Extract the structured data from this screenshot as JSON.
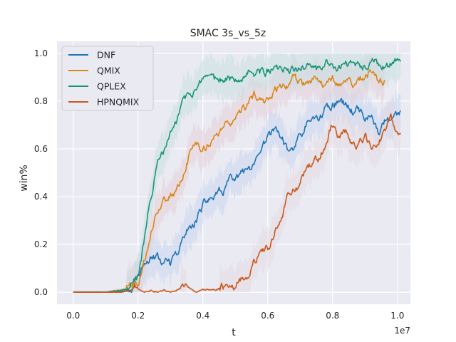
{
  "chart_data": {
    "type": "line",
    "title": "SMAC 3s_vs_5z",
    "xlabel": "t",
    "ylabel": "win%",
    "x_offset_text": "1e7",
    "xlim": [
      -0.05,
      1.04
    ],
    "ylim": [
      -0.05,
      1.05
    ],
    "x_ticks": [
      0.0,
      0.2,
      0.4,
      0.6,
      0.8,
      1.0
    ],
    "x_tick_labels": [
      "0.0",
      "0.2",
      "0.4",
      "0.6",
      "0.8",
      "1.0"
    ],
    "y_ticks": [
      0.0,
      0.2,
      0.4,
      0.6,
      0.8,
      1.0
    ],
    "y_tick_labels": [
      "0.0",
      "0.2",
      "0.4",
      "0.6",
      "0.8",
      "1.0"
    ],
    "grid": true,
    "legend_position": "top-left",
    "series": [
      {
        "name": "DNF",
        "color": "#1f74b4",
        "band_color": "#c9d6ee",
        "x": [
          0.0,
          0.05,
          0.1,
          0.15,
          0.18,
          0.2,
          0.22,
          0.24,
          0.26,
          0.28,
          0.3,
          0.32,
          0.34,
          0.36,
          0.38,
          0.4,
          0.42,
          0.44,
          0.46,
          0.48,
          0.5,
          0.52,
          0.54,
          0.56,
          0.58,
          0.6,
          0.62,
          0.64,
          0.66,
          0.68,
          0.7,
          0.72,
          0.74,
          0.76,
          0.78,
          0.8,
          0.82,
          0.84,
          0.86,
          0.88,
          0.9,
          0.92,
          0.94,
          0.96,
          0.98,
          1.0,
          1.01
        ],
        "y": [
          0.0,
          0.0,
          0.0,
          0.005,
          0.02,
          0.06,
          0.11,
          0.15,
          0.14,
          0.12,
          0.11,
          0.15,
          0.22,
          0.28,
          0.31,
          0.36,
          0.39,
          0.4,
          0.42,
          0.46,
          0.47,
          0.49,
          0.5,
          0.52,
          0.57,
          0.64,
          0.68,
          0.66,
          0.59,
          0.61,
          0.65,
          0.7,
          0.72,
          0.73,
          0.77,
          0.79,
          0.8,
          0.78,
          0.76,
          0.78,
          0.73,
          0.74,
          0.66,
          0.71,
          0.74,
          0.73,
          0.74
        ]
      },
      {
        "name": "QMIX",
        "color": "#d9861a",
        "band_color": "#e5cfd8",
        "x": [
          0.0,
          0.05,
          0.1,
          0.15,
          0.18,
          0.2,
          0.22,
          0.24,
          0.26,
          0.28,
          0.3,
          0.32,
          0.34,
          0.36,
          0.38,
          0.4,
          0.42,
          0.44,
          0.46,
          0.48,
          0.5,
          0.52,
          0.54,
          0.56,
          0.58,
          0.6,
          0.62,
          0.64,
          0.66,
          0.68,
          0.7,
          0.72,
          0.74,
          0.76,
          0.78,
          0.8,
          0.82,
          0.84,
          0.86,
          0.88,
          0.9,
          0.92,
          0.94,
          0.96
        ],
        "y": [
          0.0,
          0.0,
          0.0,
          0.01,
          0.02,
          0.05,
          0.14,
          0.26,
          0.35,
          0.38,
          0.41,
          0.43,
          0.5,
          0.58,
          0.62,
          0.6,
          0.63,
          0.66,
          0.68,
          0.71,
          0.7,
          0.75,
          0.79,
          0.82,
          0.8,
          0.8,
          0.84,
          0.87,
          0.86,
          0.89,
          0.87,
          0.88,
          0.9,
          0.91,
          0.86,
          0.89,
          0.88,
          0.9,
          0.87,
          0.89,
          0.9,
          0.93,
          0.87,
          0.88
        ]
      },
      {
        "name": "QPLEX",
        "color": "#1a9478",
        "band_color": "#c6dfe0",
        "x": [
          0.0,
          0.05,
          0.1,
          0.15,
          0.18,
          0.2,
          0.22,
          0.24,
          0.26,
          0.28,
          0.3,
          0.32,
          0.34,
          0.36,
          0.38,
          0.4,
          0.42,
          0.44,
          0.46,
          0.48,
          0.5,
          0.52,
          0.54,
          0.56,
          0.58,
          0.6,
          0.62,
          0.64,
          0.66,
          0.68,
          0.7,
          0.72,
          0.74,
          0.76,
          0.78,
          0.8,
          0.82,
          0.84,
          0.86,
          0.88,
          0.9,
          0.92,
          0.94,
          0.96,
          0.98,
          1.0,
          1.01
        ],
        "y": [
          0.0,
          0.0,
          0.0,
          0.01,
          0.02,
          0.06,
          0.22,
          0.4,
          0.53,
          0.6,
          0.65,
          0.72,
          0.8,
          0.84,
          0.85,
          0.87,
          0.87,
          0.88,
          0.89,
          0.9,
          0.9,
          0.91,
          0.92,
          0.92,
          0.92,
          0.93,
          0.93,
          0.92,
          0.93,
          0.93,
          0.93,
          0.94,
          0.94,
          0.93,
          0.95,
          0.94,
          0.94,
          0.95,
          0.95,
          0.95,
          0.94,
          0.95,
          0.95,
          0.94,
          0.95,
          0.96,
          0.95
        ]
      },
      {
        "name": "HPNQMIX",
        "color": "#c8591a",
        "band_color": "#e3d8e2",
        "x": [
          0.0,
          0.05,
          0.1,
          0.15,
          0.18,
          0.19,
          0.2,
          0.22,
          0.24,
          0.26,
          0.28,
          0.3,
          0.32,
          0.34,
          0.36,
          0.38,
          0.4,
          0.42,
          0.44,
          0.46,
          0.48,
          0.5,
          0.52,
          0.54,
          0.56,
          0.58,
          0.6,
          0.62,
          0.64,
          0.66,
          0.68,
          0.7,
          0.72,
          0.74,
          0.76,
          0.78,
          0.8,
          0.82,
          0.84,
          0.86,
          0.88,
          0.9,
          0.92,
          0.94,
          0.96,
          0.98,
          1.0,
          1.01
        ],
        "y": [
          0.0,
          0.0,
          0.0,
          0.0,
          0.01,
          0.04,
          0.01,
          0.0,
          0.01,
          0.0,
          0.01,
          0.0,
          0.01,
          0.02,
          0.01,
          0.0,
          0.01,
          0.01,
          0.01,
          0.02,
          0.03,
          0.03,
          0.06,
          0.08,
          0.13,
          0.18,
          0.18,
          0.25,
          0.3,
          0.39,
          0.42,
          0.44,
          0.52,
          0.53,
          0.56,
          0.62,
          0.7,
          0.64,
          0.67,
          0.64,
          0.62,
          0.65,
          0.61,
          0.62,
          0.66,
          0.73,
          0.68,
          0.67
        ]
      }
    ]
  }
}
